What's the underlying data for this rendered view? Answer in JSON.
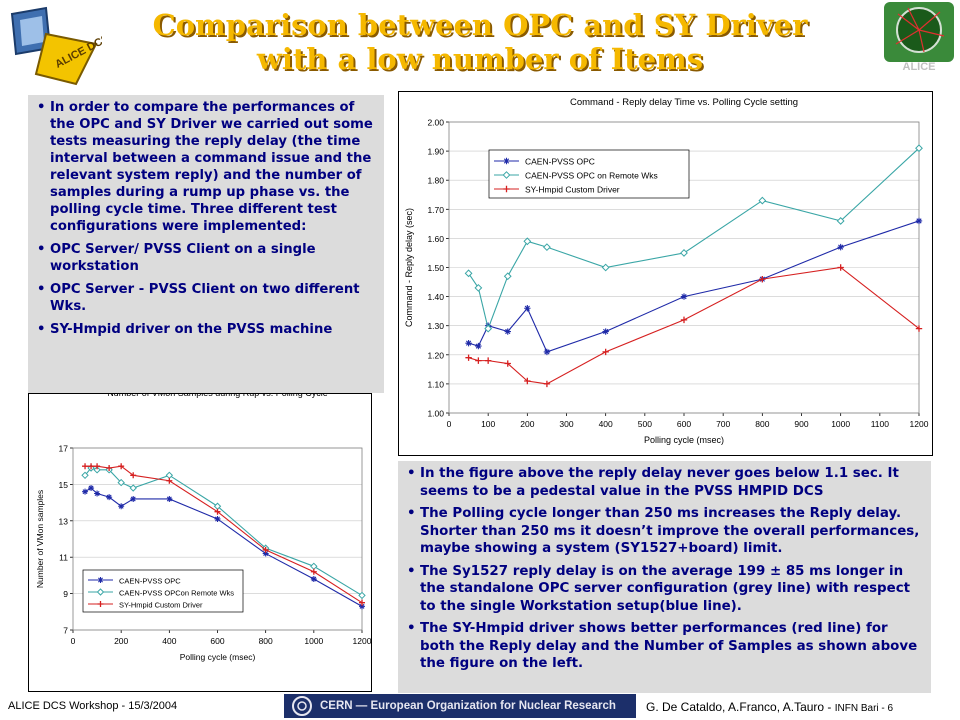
{
  "slide": {
    "title_line1": "Comparison between OPC and SY Driver",
    "title_line2": "with a low number of Items",
    "logo_text": "ALICE DCS",
    "logo_right_text": "ALICE"
  },
  "left_box": {
    "items": [
      "In order to compare the  performances of the OPC and SY Driver we carried out some tests measuring the reply delay (the time interval between a command issue and the relevant system reply) and the number of samples during a rump up phase vs. the polling cycle time. Three different test configurations were implemented:",
      "OPC Server/ PVSS Client on a single workstation",
      "OPC Server - PVSS Client on two different Wks.",
      "SY-Hmpid driver on the PVSS machine"
    ]
  },
  "right_box": {
    "items": [
      "In the figure above the reply delay never goes below 1.1 sec. It seems to be a pedestal value in the PVSS HMPID DCS",
      "The Polling cycle longer than 250 ms increases the Reply delay. Shorter than 250 ms it doesn’t improve the overall performances, maybe showing a system (SY1527+board) limit.",
      "The Sy1527 reply delay is on the average 199 ± 85 ms longer in the standalone OPC server configuration (grey line) with respect to the single Workstation setup(blue line).",
      "The SY-Hmpid driver shows better performances (red line) for both the Reply delay and the Number of Samples as shown above the figure on the left."
    ]
  },
  "footer": {
    "left": "ALICE DCS Workshop - 15/3/2004",
    "center": "CERN — European Organization for Nuclear Research",
    "right_main": "G. De Cataldo, A.Franco, A.Tauro - ",
    "right_small": "INFN Bari - 6"
  },
  "chart_data": [
    {
      "type": "line",
      "title": "Command - Reply delay Time vs. Polling Cycle setting",
      "xlabel": "Polling cycle (msec)",
      "ylabel": "Command - Reply delay (sec)",
      "xlim": [
        0,
        1200
      ],
      "ylim": [
        1.0,
        2.0
      ],
      "xticks": [
        "0",
        "100",
        "200",
        "300",
        "400",
        "500",
        "600",
        "700",
        "800",
        "900",
        "1000",
        "1100",
        "1200"
      ],
      "yticks": [
        "1.00",
        "1.10",
        "1.20",
        "1.30",
        "1.40",
        "1.50",
        "1.60",
        "1.70",
        "1.80",
        "1.90",
        "2.00"
      ],
      "legend_position": "upper-left",
      "series": [
        {
          "name": "CAEN-PVSS OPC",
          "color": "#1f2aa8",
          "marker": "star",
          "x": [
            50,
            75,
            100,
            150,
            200,
            250,
            400,
            600,
            800,
            1000,
            1200
          ],
          "y": [
            1.24,
            1.23,
            1.3,
            1.28,
            1.36,
            1.21,
            1.28,
            1.4,
            1.46,
            1.57,
            1.66
          ]
        },
        {
          "name": "CAEN-PVSS OPC on Remote Wks",
          "color": "#3aa6a6",
          "marker": "diamond",
          "x": [
            50,
            75,
            100,
            150,
            200,
            250,
            400,
            600,
            800,
            1000,
            1200
          ],
          "y": [
            1.48,
            1.43,
            1.29,
            1.47,
            1.59,
            1.57,
            1.5,
            1.55,
            1.73,
            1.66,
            1.91
          ]
        },
        {
          "name": "SY-Hmpid Custom Driver",
          "color": "#d62020",
          "marker": "plus",
          "x": [
            50,
            75,
            100,
            150,
            200,
            250,
            400,
            600,
            800,
            1000,
            1200
          ],
          "y": [
            1.19,
            1.18,
            1.18,
            1.17,
            1.11,
            1.1,
            1.21,
            1.32,
            1.46,
            1.5,
            1.29
          ]
        }
      ]
    },
    {
      "type": "line",
      "title": "Number of VMon Samples during Rup vs. Polling Cycle",
      "xlabel": "Polling cycle (msec)",
      "ylabel": "Number of VMon samples",
      "xlim": [
        0,
        1200
      ],
      "ylim": [
        7,
        17
      ],
      "xticks": [
        "0",
        "200",
        "400",
        "600",
        "800",
        "1000",
        "1200"
      ],
      "yticks": [
        "7",
        "9",
        "11",
        "13",
        "15",
        "17"
      ],
      "legend_position": "lower-left",
      "series": [
        {
          "name": "CAEN-PVSS OPC",
          "color": "#1f2aa8",
          "marker": "star",
          "x": [
            50,
            75,
            100,
            150,
            200,
            250,
            400,
            600,
            800,
            1000,
            1200
          ],
          "y": [
            14.6,
            14.8,
            14.5,
            14.3,
            13.8,
            14.2,
            14.2,
            13.1,
            11.2,
            9.8,
            8.3
          ]
        },
        {
          "name": "CAEN-PVSS OPCon Remote Wks",
          "color": "#3aa6a6",
          "marker": "diamond",
          "x": [
            50,
            75,
            100,
            150,
            200,
            250,
            400,
            600,
            800,
            1000,
            1200
          ],
          "y": [
            15.5,
            15.9,
            15.8,
            15.8,
            15.1,
            14.8,
            15.5,
            13.8,
            11.5,
            10.5,
            8.9
          ]
        },
        {
          "name": "SY-Hmpid Custom Driver",
          "color": "#d62020",
          "marker": "plus",
          "x": [
            50,
            75,
            100,
            150,
            200,
            250,
            400,
            600,
            800,
            1000,
            1200
          ],
          "y": [
            16.0,
            16.0,
            16.0,
            15.9,
            16.0,
            15.5,
            15.2,
            13.5,
            11.4,
            10.2,
            8.5
          ]
        }
      ]
    }
  ]
}
